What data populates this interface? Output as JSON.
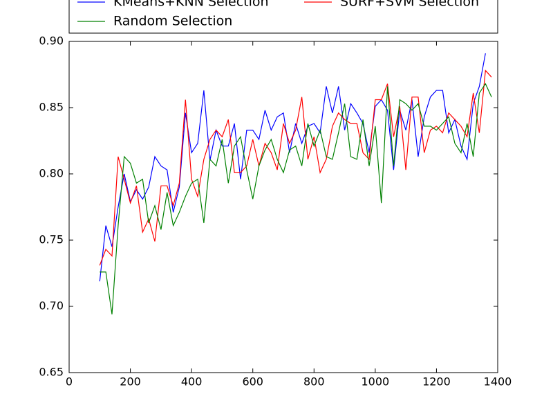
{
  "chart_data": {
    "type": "line",
    "x": [
      100,
      120,
      140,
      160,
      180,
      200,
      220,
      240,
      260,
      280,
      300,
      320,
      340,
      360,
      380,
      400,
      420,
      440,
      460,
      480,
      500,
      520,
      540,
      560,
      580,
      600,
      620,
      640,
      660,
      680,
      700,
      720,
      740,
      760,
      780,
      800,
      820,
      840,
      860,
      880,
      900,
      920,
      940,
      960,
      980,
      1000,
      1020,
      1040,
      1060,
      1080,
      1100,
      1120,
      1140,
      1160,
      1180,
      1200,
      1220,
      1240,
      1260,
      1280,
      1300,
      1320,
      1340,
      1360,
      1380
    ],
    "series": [
      {
        "name": "KMeans+KNN Selection",
        "color": "#0000ff",
        "values": [
          0.719,
          0.761,
          0.745,
          0.775,
          0.8,
          0.779,
          0.788,
          0.781,
          0.79,
          0.813,
          0.806,
          0.803,
          0.771,
          0.79,
          0.846,
          0.816,
          0.823,
          0.863,
          0.81,
          0.833,
          0.821,
          0.821,
          0.838,
          0.796,
          0.833,
          0.833,
          0.826,
          0.848,
          0.833,
          0.843,
          0.846,
          0.816,
          0.838,
          0.823,
          0.836,
          0.838,
          0.831,
          0.866,
          0.846,
          0.866,
          0.833,
          0.853,
          0.846,
          0.838,
          0.816,
          0.851,
          0.856,
          0.848,
          0.803,
          0.848,
          0.833,
          0.856,
          0.813,
          0.843,
          0.858,
          0.863,
          0.863,
          0.831,
          0.841,
          0.821,
          0.811,
          0.853,
          0.866,
          0.891,
          null
        ]
      },
      {
        "name": "SURF+SVM Selection",
        "color": "#ff0000",
        "values": [
          0.731,
          0.743,
          0.738,
          0.813,
          0.796,
          0.778,
          0.791,
          0.756,
          0.766,
          0.749,
          0.791,
          0.791,
          0.776,
          0.793,
          0.856,
          0.796,
          0.783,
          0.811,
          0.826,
          0.833,
          0.828,
          0.841,
          0.801,
          0.801,
          0.806,
          0.826,
          0.806,
          0.823,
          0.816,
          0.803,
          0.838,
          0.823,
          0.833,
          0.858,
          0.811,
          0.828,
          0.801,
          0.811,
          0.836,
          0.846,
          0.841,
          0.838,
          0.838,
          0.816,
          0.811,
          0.856,
          0.856,
          0.868,
          0.828,
          0.851,
          0.803,
          0.858,
          0.858,
          0.816,
          0.833,
          0.836,
          0.831,
          0.846,
          0.841,
          0.836,
          0.828,
          0.861,
          0.831,
          0.878,
          0.873
        ]
      },
      {
        "name": "Random Selection",
        "color": "#008000",
        "values": [
          0.726,
          0.726,
          0.694,
          0.761,
          0.813,
          0.808,
          0.793,
          0.796,
          0.763,
          0.776,
          0.758,
          0.786,
          0.761,
          0.771,
          0.783,
          0.793,
          0.796,
          0.763,
          0.811,
          0.806,
          0.826,
          0.793,
          0.821,
          0.828,
          0.803,
          0.781,
          0.806,
          0.818,
          0.826,
          0.811,
          0.801,
          0.818,
          0.821,
          0.806,
          0.838,
          0.821,
          0.833,
          0.813,
          0.811,
          0.831,
          0.853,
          0.813,
          0.811,
          0.841,
          0.806,
          0.836,
          0.778,
          0.866,
          0.806,
          0.856,
          0.853,
          0.848,
          0.853,
          0.836,
          0.836,
          0.833,
          0.838,
          0.843,
          0.823,
          0.816,
          0.838,
          0.813,
          0.861,
          0.868,
          0.858
        ]
      }
    ],
    "xlim": [
      0,
      1400
    ],
    "xticks": [
      0,
      200,
      400,
      600,
      800,
      1000,
      1200,
      1400
    ],
    "ylim": [
      0.65,
      0.9
    ],
    "yticks": [
      {
        "value": 0.65,
        "label": "0.65"
      },
      {
        "value": 0.7,
        "label": "0.70"
      },
      {
        "value": 0.75,
        "label": "0.75"
      },
      {
        "value": 0.8,
        "label": "0.80"
      },
      {
        "value": 0.85,
        "label": "0.85"
      },
      {
        "value": 0.9,
        "label": "0.90"
      }
    ],
    "legend": "upper center"
  }
}
